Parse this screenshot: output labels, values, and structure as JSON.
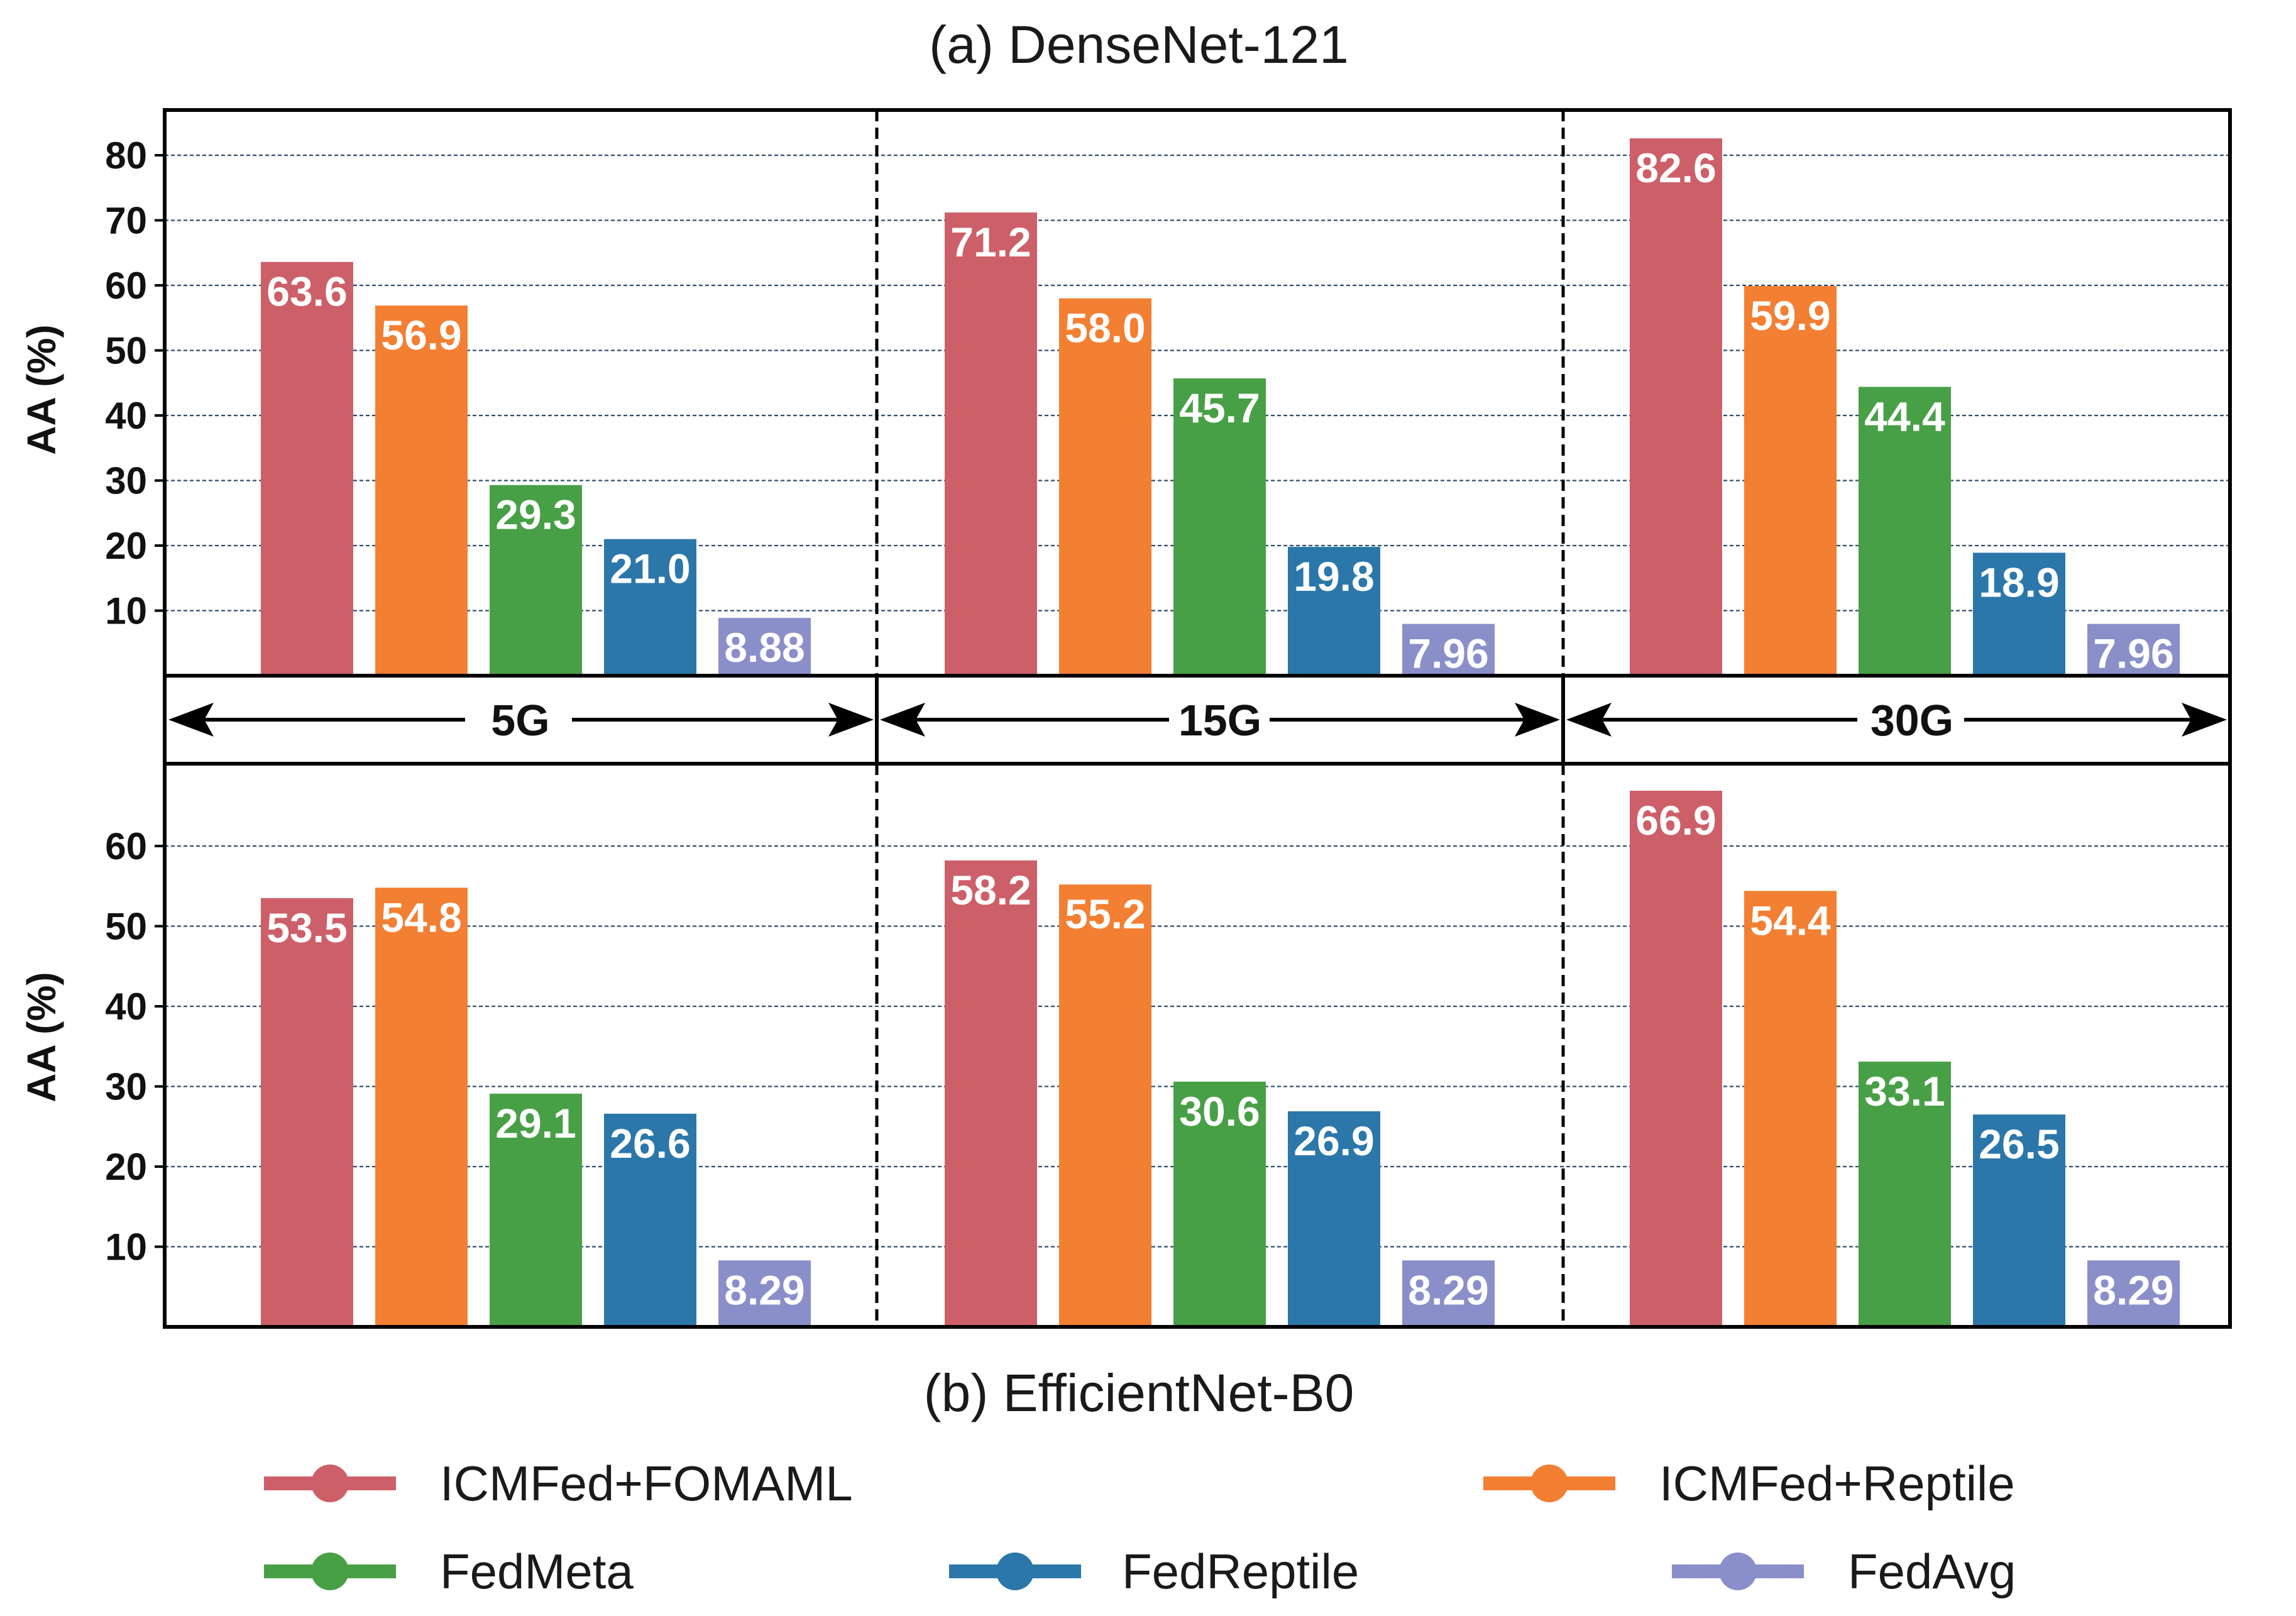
{
  "chart_data": [
    {
      "type": "bar",
      "title": "(a) DenseNet-121",
      "ylabel": "AA (%)",
      "ylim": [
        0,
        87
      ],
      "yticks": [
        "10",
        "20",
        "30",
        "40",
        "50",
        "60",
        "70",
        "80"
      ],
      "categories": [
        "5G",
        "15G",
        "30G"
      ],
      "series": [
        {
          "name": "ICMFed+FOMAML",
          "values": [
            63.6,
            71.2,
            82.6
          ],
          "labels": [
            "63.6",
            "71.2",
            "82.6"
          ]
        },
        {
          "name": "ICMFed+Reptile",
          "values": [
            56.9,
            58.0,
            59.9
          ],
          "labels": [
            "56.9",
            "58.0",
            "59.9"
          ]
        },
        {
          "name": "FedMeta",
          "values": [
            29.3,
            45.7,
            44.4
          ],
          "labels": [
            "29.3",
            "45.7",
            "44.4"
          ]
        },
        {
          "name": "FedReptile",
          "values": [
            21.0,
            19.8,
            18.9
          ],
          "labels": [
            "21.0",
            "19.8",
            "18.9"
          ]
        },
        {
          "name": "FedAvg",
          "values": [
            8.88,
            7.96,
            7.96
          ],
          "labels": [
            "8.88",
            "7.96",
            "7.96"
          ]
        }
      ]
    },
    {
      "type": "bar",
      "title": "(b) EfficientNet-B0",
      "ylabel": "AA (%)",
      "ylim": [
        0,
        70
      ],
      "yticks": [
        "10",
        "20",
        "30",
        "40",
        "50",
        "60"
      ],
      "categories": [
        "5G",
        "15G",
        "30G"
      ],
      "series": [
        {
          "name": "ICMFed+FOMAML",
          "values": [
            53.5,
            58.2,
            66.9
          ],
          "labels": [
            "53.5",
            "58.2",
            "66.9"
          ]
        },
        {
          "name": "ICMFed+Reptile",
          "values": [
            54.8,
            55.2,
            54.4
          ],
          "labels": [
            "54.8",
            "55.2",
            "54.4"
          ]
        },
        {
          "name": "FedMeta",
          "values": [
            29.1,
            30.6,
            33.1
          ],
          "labels": [
            "29.1",
            "30.6",
            "33.1"
          ]
        },
        {
          "name": "FedReptile",
          "values": [
            26.6,
            26.9,
            26.5
          ],
          "labels": [
            "26.6",
            "26.9",
            "26.5"
          ]
        },
        {
          "name": "FedAvg",
          "values": [
            8.29,
            8.29,
            8.29
          ],
          "labels": [
            "8.29",
            "8.29",
            "8.29"
          ]
        }
      ]
    }
  ],
  "colors": {
    "ICMFed+FOMAML": "#cd5f69",
    "ICMFed+Reptile": "#f37f33",
    "FedMeta": "#48a046",
    "FedReptile": "#2b77aa",
    "FedAvg": "#8a8fc9"
  },
  "legend": {
    "row1": [
      "ICMFed+FOMAML",
      "ICMFed+Reptile"
    ],
    "row2": [
      "FedMeta",
      "FedReptile",
      "FedAvg"
    ]
  }
}
